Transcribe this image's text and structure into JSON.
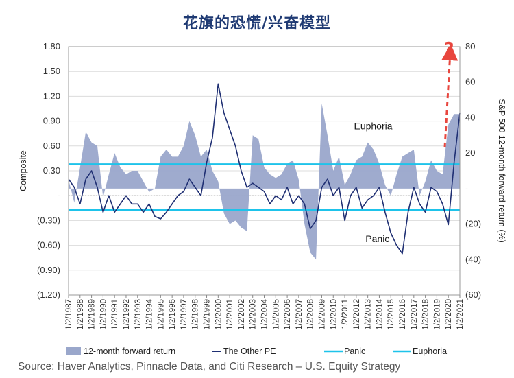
{
  "title": "花旗的恐慌/兴奋模型",
  "source": "Source: Haver Analytics, Pinnacle Data, and Citi Research – U.S. Equity Strategy",
  "chart_data": {
    "type": "line",
    "ylabel_left": "Composite",
    "ylabel_right": "S&P 500 12-month forward return (%)",
    "yticks_left": [
      "1.80",
      "1.50",
      "1.20",
      "0.90",
      "0.60",
      "0.30",
      "-",
      "(0.30)",
      "(0.60)",
      "(0.90)",
      "(1.20)"
    ],
    "yticks_right": [
      "80",
      "60",
      "40",
      "20",
      "-",
      "(20)",
      "(40)",
      "(60)"
    ],
    "ylim_left": [
      -1.2,
      1.8
    ],
    "ylim_right": [
      -60,
      80
    ],
    "x_tick_labels": [
      "1/2/1987",
      "1/2/1988",
      "1/2/1989",
      "1/2/1990",
      "1/2/1991",
      "1/2/1992",
      "1/2/1993",
      "1/2/1994",
      "1/2/1995",
      "1/2/1996",
      "1/2/1997",
      "1/2/1998",
      "1/2/1999",
      "1/2/2000",
      "1/2/2001",
      "1/2/2002",
      "1/2/2003",
      "1/2/2004",
      "1/2/2005",
      "1/2/2006",
      "1/2/2007",
      "1/2/2008",
      "1/2/2009",
      "1/2/2010",
      "1/2/2011",
      "1/2/2012",
      "1/2/2013",
      "1/2/2014",
      "1/2/2015",
      "1/2/2016",
      "1/2/2017",
      "1/2/2018",
      "1/2/2019",
      "1/2/2020",
      "1/2/2021"
    ],
    "x": [
      1987.0,
      1987.5,
      1988.0,
      1988.5,
      1989.0,
      1989.5,
      1990.0,
      1990.5,
      1991.0,
      1991.5,
      1992.0,
      1992.5,
      1993.0,
      1993.5,
      1994.0,
      1994.5,
      1995.0,
      1995.5,
      1996.0,
      1996.5,
      1997.0,
      1997.5,
      1998.0,
      1998.5,
      1999.0,
      1999.5,
      2000.0,
      2000.5,
      2001.0,
      2001.5,
      2002.0,
      2002.5,
      2003.0,
      2003.5,
      2004.0,
      2004.5,
      2005.0,
      2005.5,
      2006.0,
      2006.5,
      2007.0,
      2007.5,
      2008.0,
      2008.5,
      2009.0,
      2009.5,
      2010.0,
      2010.5,
      2011.0,
      2011.5,
      2012.0,
      2012.5,
      2013.0,
      2013.5,
      2014.0,
      2014.5,
      2015.0,
      2015.5,
      2016.0,
      2016.5,
      2017.0,
      2017.5,
      2018.0,
      2018.5,
      2019.0,
      2019.5,
      2020.0,
      2020.5,
      2021.0
    ],
    "thresholds": {
      "panic": -0.17,
      "euphoria": 0.38
    },
    "series": [
      {
        "name": "12-month forward return",
        "axis": "right",
        "style": "area",
        "color": "#9aa7cb",
        "values": [
          5,
          -8,
          12,
          32,
          26,
          24,
          -5,
          8,
          20,
          12,
          8,
          10,
          10,
          4,
          -2,
          0,
          18,
          22,
          18,
          18,
          24,
          38,
          30,
          18,
          22,
          10,
          4,
          -14,
          -20,
          -18,
          -22,
          -24,
          30,
          28,
          12,
          8,
          6,
          8,
          14,
          16,
          5,
          -20,
          -36,
          -40,
          48,
          30,
          10,
          18,
          2,
          8,
          16,
          18,
          26,
          22,
          14,
          2,
          -4,
          8,
          18,
          20,
          22,
          -4,
          4,
          16,
          10,
          8,
          36,
          42,
          42
        ]
      },
      {
        "name": "The Other PE",
        "axis": "left",
        "style": "line",
        "color": "#1f2f73",
        "values": [
          0.2,
          0.1,
          -0.1,
          0.2,
          0.3,
          0.1,
          -0.2,
          0.0,
          -0.2,
          -0.1,
          0.0,
          -0.1,
          -0.1,
          -0.2,
          -0.1,
          -0.25,
          -0.28,
          -0.2,
          -0.1,
          0.0,
          0.05,
          0.2,
          0.1,
          0.0,
          0.4,
          0.7,
          1.35,
          1.0,
          0.8,
          0.6,
          0.3,
          0.1,
          0.15,
          0.1,
          0.05,
          -0.1,
          0.0,
          -0.05,
          0.1,
          -0.1,
          0.0,
          -0.1,
          -0.4,
          -0.3,
          0.1,
          0.2,
          0.0,
          0.1,
          -0.3,
          0.0,
          0.1,
          -0.15,
          -0.05,
          0.0,
          0.1,
          -0.2,
          -0.45,
          -0.6,
          -0.7,
          -0.2,
          0.1,
          -0.1,
          -0.2,
          0.1,
          0.05,
          -0.1,
          -0.35,
          0.4,
          1.0
        ]
      },
      {
        "name": "Panic",
        "axis": "left",
        "style": "hline",
        "color": "#1ec3ea"
      },
      {
        "name": "Euphoria",
        "axis": "left",
        "style": "hline",
        "color": "#1ec3ea"
      }
    ],
    "annotations": [
      {
        "text": "Euphoria",
        "x": 2011.8,
        "y": 0.8
      },
      {
        "text": "Panic",
        "x": 2012.8,
        "y": -0.56
      },
      {
        "text": "?",
        "x": 2019.6,
        "y": 1.7
      }
    ],
    "grid": true,
    "legend": "bottom"
  }
}
